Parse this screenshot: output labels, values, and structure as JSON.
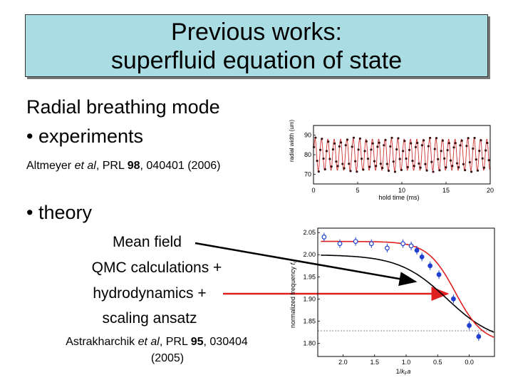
{
  "title": {
    "line1": "Previous works:",
    "line2": "superfluid equation of state"
  },
  "section1": {
    "heading": "Radial breathing mode",
    "bullet": "• experiments"
  },
  "ref1": {
    "prefix": "Altmeyer ",
    "etal": "et al",
    "mid": ", PRL ",
    "vol": "98",
    "rest": ", 040401 (2006)"
  },
  "section2": {
    "bullet": "• theory"
  },
  "labels": {
    "mean_field": "Mean field",
    "qmc1": "QMC calculations +",
    "qmc2": "hydrodynamics +",
    "qmc3": "scaling ansatz"
  },
  "ref2": {
    "prefix": "Astrakharchik ",
    "etal": "et al",
    "mid": ", PRL ",
    "vol": "95",
    "rest": ", 030404",
    "year": "(2005)"
  },
  "colors": {
    "title_bg": "#a9dde3",
    "red": "#e02020",
    "blue": "#1f3fd0",
    "dark": "#3a1010"
  },
  "chart_data": [
    {
      "type": "scatter",
      "xlabel": "hold time (ms)",
      "ylabel": "radial width (um)",
      "xlim": [
        0,
        20
      ],
      "ylim": [
        65,
        95
      ],
      "xticks": [
        "0",
        "5",
        "10",
        "15",
        "20"
      ],
      "yticks": [
        "70",
        "80",
        "90"
      ],
      "series": [
        {
          "kind": "oscillation-fit",
          "color": "#d03030",
          "center": 80,
          "amplitude": 8,
          "period_ms": 0.72
        }
      ]
    },
    {
      "type": "line",
      "xlabel": "1/kFa",
      "ylabel": "normalized frequency fc",
      "xlim": [
        2.4,
        -0.4
      ],
      "ylim": [
        1.77,
        2.06
      ],
      "xticks": [
        "2.0",
        "1.5",
        "1.0",
        "0.5",
        "0.0"
      ],
      "yticks": [
        "1.80",
        "1.85",
        "1.90",
        "1.95",
        "2.00",
        "2.05"
      ],
      "series": [
        {
          "kind": "data",
          "color": "#1f3fd0",
          "x": [
            2.3,
            2.05,
            1.8,
            1.55,
            1.3,
            1.05,
            0.92,
            0.83,
            0.75,
            0.62,
            0.48,
            0.25,
            0.0,
            -0.15
          ],
          "y": [
            2.04,
            2.025,
            2.03,
            2.025,
            2.015,
            2.025,
            2.02,
            2.01,
            1.995,
            1.975,
            1.955,
            1.9,
            1.84,
            1.815
          ]
        }
      ]
    }
  ]
}
